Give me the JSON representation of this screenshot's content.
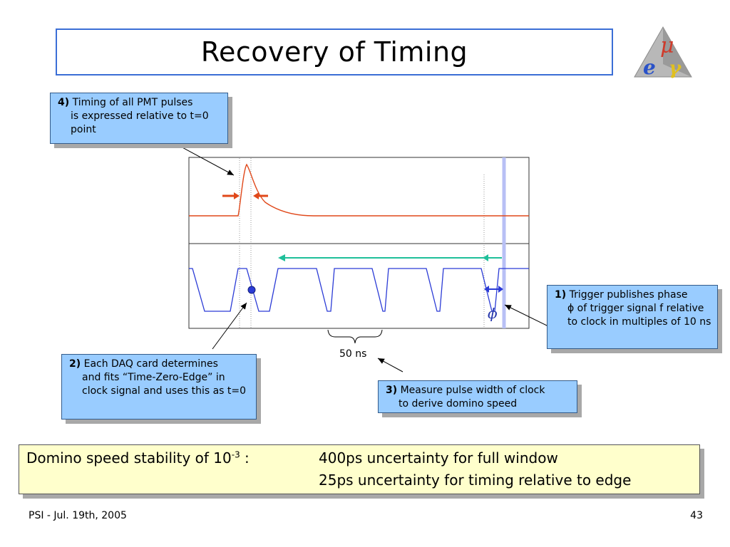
{
  "slide": {
    "title": "Recovery of Timing",
    "page_number": "43",
    "footer": "PSI - Jul. 19th,  2005"
  },
  "logo": {
    "letters": [
      "μ",
      "e",
      "γ"
    ]
  },
  "diagram": {
    "scale_label": "50 ns",
    "phase_symbol": "ϕ",
    "colors": {
      "pmt_pulse": "#e0481a",
      "clock": "#2b3bd6",
      "domino_arrow": "#1fbf9a",
      "trigger_line": "#b8c0f5"
    }
  },
  "callouts": {
    "c4": {
      "num": "4)",
      "first": "Timing of all PMT pulses",
      "rest": "is expressed relative to t=0 point"
    },
    "c1": {
      "num": "1)",
      "first": "Trigger publishes phase",
      "rest": "ϕ of trigger signal f relative to clock in multiples of 10 ns"
    },
    "c2": {
      "num": "2)",
      "first": "Each DAQ card determines",
      "rest": "and fits “Time-Zero-Edge” in clock signal and uses this as t=0"
    },
    "c3": {
      "num": "3)",
      "first": "Measure pulse width of clock",
      "rest": "to derive domino speed"
    }
  },
  "summary": {
    "label_prefix": "Domino speed stability of 10",
    "label_exp": "-3",
    "label_suffix": " :",
    "line1": "400ps uncertainty for full window",
    "line2": "25ps uncertainty for timing relative to edge"
  }
}
